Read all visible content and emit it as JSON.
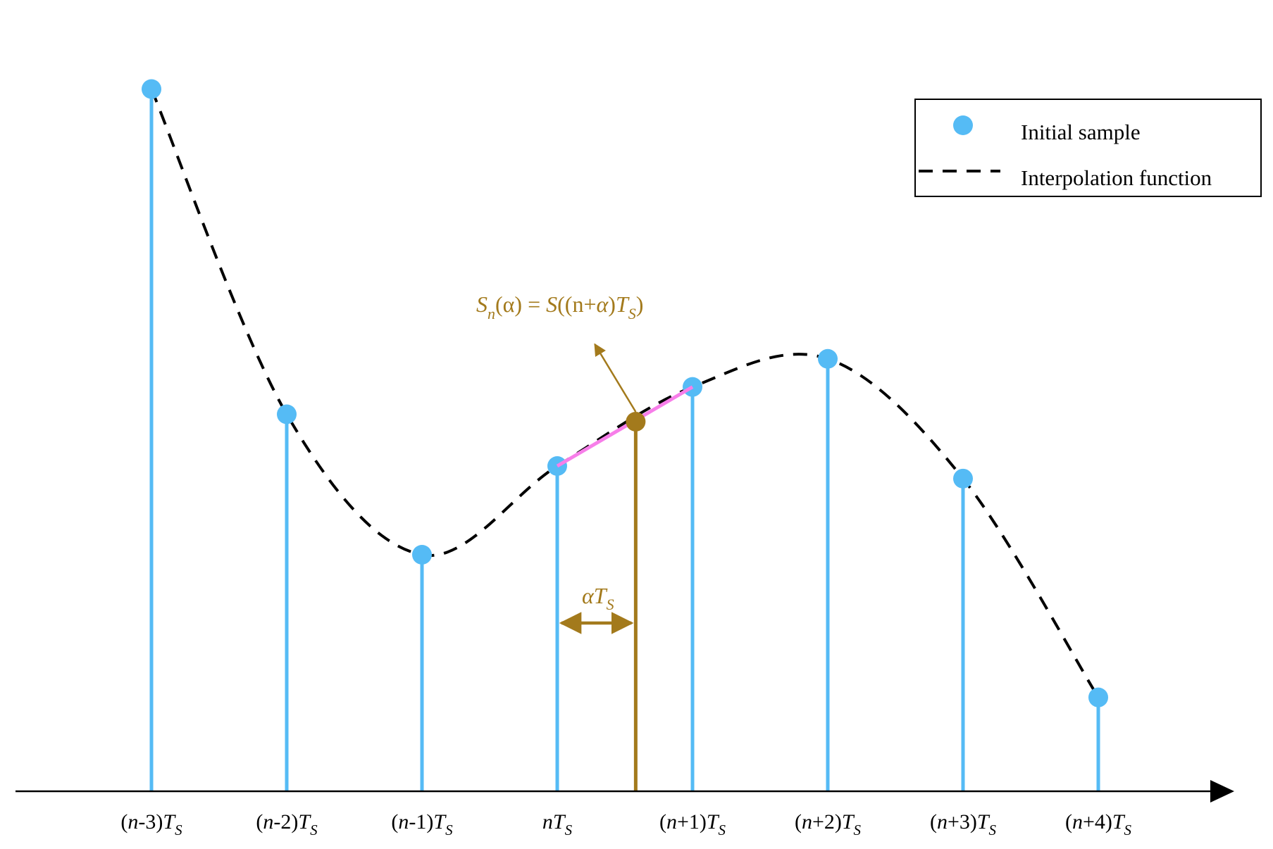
{
  "colors": {
    "sample": "#55BBF5",
    "curve": "#000000",
    "segment": "#F77EE9",
    "interp": "#A37A1C",
    "axis": "#000000"
  },
  "samples": [
    {
      "n": "n",
      "sign": "-",
      "k": "3",
      "value": 95
    },
    {
      "n": "n",
      "sign": "-",
      "k": "2",
      "value": 51
    },
    {
      "n": "n",
      "sign": "-",
      "k": "1",
      "value": 32
    },
    {
      "n": "n",
      "sign": "",
      "k": "",
      "value": 44
    },
    {
      "n": "n",
      "sign": "+",
      "k": "1",
      "value": 54.7
    },
    {
      "n": "n",
      "sign": "+",
      "k": "2",
      "value": 58.5
    },
    {
      "n": "n",
      "sign": "+",
      "k": "3",
      "value": 42.3
    },
    {
      "n": "n",
      "sign": "+",
      "k": "4",
      "value": 12.7
    }
  ],
  "tick_labels": {
    "T": "T",
    "S": "S"
  },
  "interpolated": {
    "alpha": 0.58,
    "value": 50
  },
  "legend": {
    "sample_label": "Initial sample",
    "curve_label": "Interpolation function",
    "position": "top-right"
  },
  "annotation": {
    "alpha_label_greek": "α",
    "alpha_label_T": "T",
    "alpha_label_S": "S",
    "formula_S": "S",
    "formula_n": "n",
    "formula_lhs": "(α) = ",
    "formula_S2": "S",
    "formula_mid": "((n+",
    "formula_alpha": "α",
    "formula_close": ")",
    "formula_T": "T",
    "formula_sub": "S",
    "formula_end": ")"
  }
}
